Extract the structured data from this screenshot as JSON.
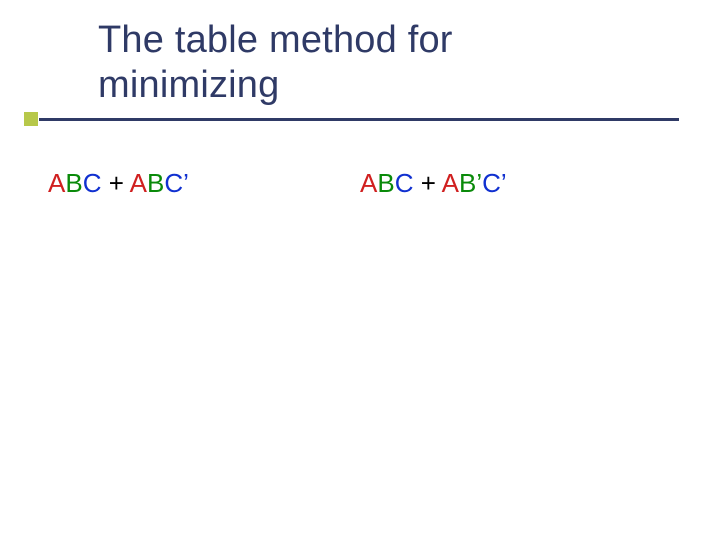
{
  "slide": {
    "title": "The table method for minimizing",
    "title_color": "#2f3a66",
    "title_fontsize": 38,
    "underline_color": "#2f3a66",
    "square_color": "#b7c84a",
    "background_color": "#ffffff"
  },
  "colors": {
    "red": "#d02020",
    "green": "#0a8a0a",
    "blue": "#1030d0",
    "black": "#000000"
  },
  "expressions": {
    "left": {
      "parts": [
        {
          "text": "A",
          "color_key": "red"
        },
        {
          "text": "B",
          "color_key": "green"
        },
        {
          "text": "C ",
          "color_key": "blue"
        },
        {
          "text": "+ ",
          "color_key": "black"
        },
        {
          "text": "A",
          "color_key": "red"
        },
        {
          "text": "B",
          "color_key": "green"
        },
        {
          "text": "C’",
          "color_key": "blue"
        }
      ]
    },
    "right": {
      "parts": [
        {
          "text": "A",
          "color_key": "red"
        },
        {
          "text": "B",
          "color_key": "green"
        },
        {
          "text": "C ",
          "color_key": "blue"
        },
        {
          "text": "+ ",
          "color_key": "black"
        },
        {
          "text": "A",
          "color_key": "red"
        },
        {
          "text": "B’",
          "color_key": "green"
        },
        {
          "text": "C’",
          "color_key": "blue"
        }
      ]
    },
    "fontsize": 26
  }
}
